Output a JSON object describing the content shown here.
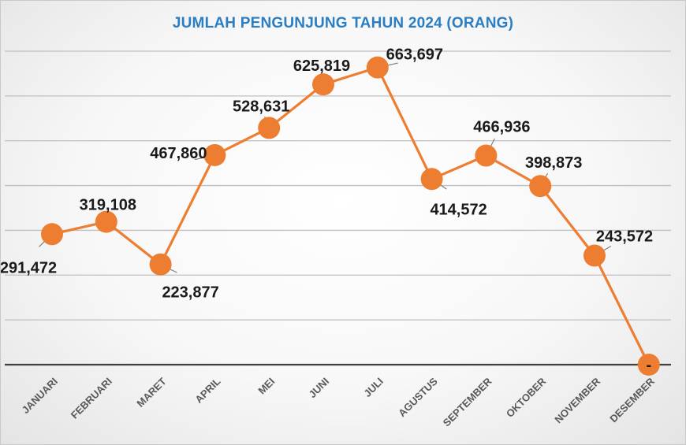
{
  "chart_data": {
    "type": "line",
    "title": "JUMLAH PENGUNJUNG TAHUN 2024 (ORANG)",
    "categories": [
      "JANUARI",
      "FEBRUARI",
      "MARET",
      "APRIL",
      "MEI",
      "JUNI",
      "JULI",
      "AGUSTUS",
      "SEPTEMBER",
      "OKTOBER",
      "NOVEMBER",
      "DESEMBER"
    ],
    "values": [
      291472,
      319108,
      223877,
      467860,
      528631,
      625819,
      663697,
      414572,
      466936,
      398873,
      243572,
      0
    ],
    "data_labels": [
      "291,472",
      "319,108",
      "223,877",
      "467,860",
      "528,631",
      "625,819",
      "663,697",
      "414,572",
      "466,936",
      "398,873",
      "243,572",
      "-"
    ],
    "ylim": [
      0,
      700000
    ],
    "grid": true,
    "legend": "none",
    "colors": {
      "line": "#ed7d31",
      "title": "#2a7fc4",
      "grid": "#bfbfbf",
      "axis": "#404040",
      "label": "#1a1a1a",
      "tick_label": "#595959"
    }
  }
}
